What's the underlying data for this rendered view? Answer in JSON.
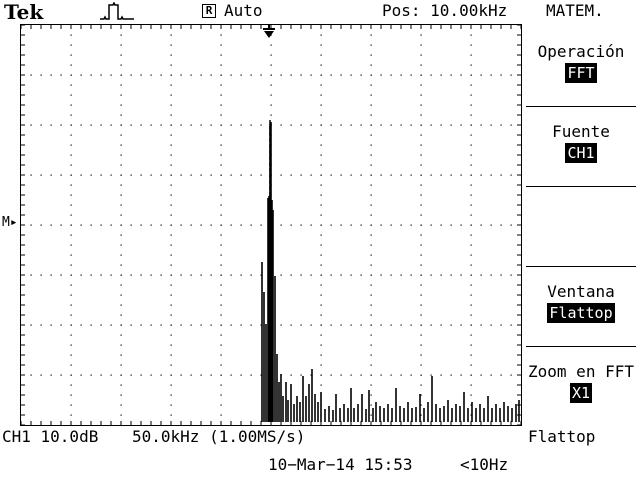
{
  "header": {
    "brand": "Tek",
    "trigger_icon": "trigger-waveform-icon",
    "acq_mode_icon_glyph": "R",
    "acq_mode": "Auto",
    "position": "Pos: 10.00kHz"
  },
  "menu": {
    "title": "MATEM.",
    "items": [
      {
        "label": "Operación",
        "value": "FFT"
      },
      {
        "label": "Fuente",
        "value": "CH1"
      },
      {
        "label": "",
        "value": ""
      },
      {
        "label": "Ventana",
        "value": "Flattop"
      },
      {
        "label": "Zoom en FFT",
        "value": "X1"
      }
    ]
  },
  "status": {
    "ch1_scale": "CH1 10.0dB",
    "freq_scale": "50.0kHz (1.00MS/s)",
    "window": "Flattop",
    "datetime": "10−Mar−14 15:53",
    "trigger_freq": "<10Hz"
  },
  "markers": {
    "math_ref": "M",
    "trigger_position_icon": "trigger-position-arrow-icon"
  },
  "colors": {
    "background": "#ffffff",
    "foreground": "#000000"
  }
}
